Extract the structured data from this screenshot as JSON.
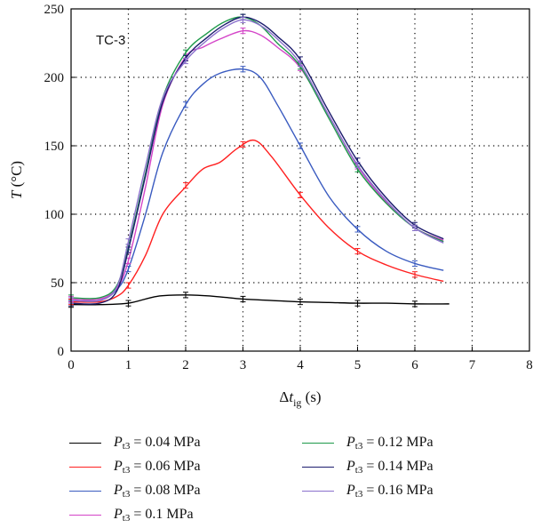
{
  "chart_data": {
    "type": "line",
    "annotation": "TC-3",
    "xlabel": {
      "delta": "Δ",
      "var": "t",
      "sub": "ig",
      "unit": " (s)"
    },
    "ylabel": {
      "var": "T",
      "unit": " (°C)"
    },
    "xlim": [
      0,
      8
    ],
    "ylim": [
      0,
      250
    ],
    "xticks": [
      "0",
      "1",
      "2",
      "3",
      "4",
      "5",
      "6",
      "7",
      "8"
    ],
    "yticks": [
      "0",
      "50",
      "100",
      "150",
      "200",
      "250"
    ],
    "grid": "dotted",
    "legend_position": "bottom",
    "series": [
      {
        "name": "0.04 MPa",
        "color": "#000000",
        "x": [
          0,
          0.5,
          1,
          1.5,
          2,
          2.5,
          3,
          3.5,
          4,
          4.5,
          5,
          5.5,
          6,
          6.6
        ],
        "y": [
          34,
          34,
          35,
          40,
          41,
          40,
          38,
          37,
          36,
          35.5,
          35,
          35,
          34.5,
          34.5
        ],
        "err_x": [
          0,
          1,
          2,
          3,
          4,
          5,
          6
        ],
        "err_y": [
          34,
          35,
          41,
          38,
          36,
          35,
          34.5
        ]
      },
      {
        "name": "0.06 MPa",
        "color": "#ff2020",
        "x": [
          0,
          0.5,
          0.8,
          1,
          1.3,
          1.6,
          2,
          2.3,
          2.6,
          2.9,
          3.2,
          3.5,
          4,
          4.5,
          5,
          5.5,
          6,
          6.5
        ],
        "y": [
          36,
          36,
          40,
          48,
          70,
          100,
          120,
          133,
          138,
          148,
          154,
          142,
          114,
          90,
          73,
          63,
          56,
          51
        ],
        "err_x": [
          0,
          1,
          2,
          3,
          4,
          5,
          6
        ],
        "err_y": [
          36,
          48,
          121,
          151,
          114,
          73,
          56
        ]
      },
      {
        "name": "0.08 MPa",
        "color": "#3a5bc0",
        "x": [
          0,
          0.5,
          0.8,
          1,
          1.3,
          1.6,
          2,
          2.3,
          2.6,
          3,
          3.3,
          3.6,
          4,
          4.5,
          5,
          5.5,
          6,
          6.5
        ],
        "y": [
          37,
          37,
          45,
          60,
          100,
          145,
          180,
          195,
          203,
          206,
          200,
          180,
          150,
          113,
          89,
          73,
          64,
          59
        ],
        "err_x": [
          0,
          1,
          2,
          3,
          4,
          5,
          6
        ],
        "err_y": [
          37,
          60,
          180,
          206,
          150,
          89,
          64
        ]
      },
      {
        "name": "0.1 MPa",
        "color": "#d444c8",
        "x": [
          0,
          0.5,
          0.8,
          1,
          1.3,
          1.6,
          2,
          2.3,
          2.6,
          3,
          3.3,
          3.6,
          4,
          4.5,
          5,
          5.5,
          6,
          6.5
        ],
        "y": [
          38,
          38,
          46,
          66,
          120,
          180,
          215,
          222,
          228,
          234,
          231,
          222,
          207,
          172,
          135,
          109,
          90,
          81
        ],
        "err_x": [
          0,
          1,
          2,
          3,
          4,
          5,
          6
        ],
        "err_y": [
          38,
          66,
          215,
          234,
          207,
          135,
          90
        ]
      },
      {
        "name": "0.12 MPa",
        "color": "#1e9a4a",
        "x": [
          0,
          0.5,
          0.8,
          1,
          1.3,
          1.6,
          2,
          2.4,
          2.7,
          3,
          3.3,
          3.6,
          4,
          4.5,
          5,
          5.5,
          6,
          6.5
        ],
        "y": [
          39,
          39,
          48,
          76,
          130,
          185,
          218,
          233,
          241,
          244,
          238,
          225,
          208,
          170,
          133,
          108,
          90,
          80
        ],
        "err_x": [
          0,
          1,
          2,
          3,
          4,
          5,
          6
        ],
        "err_y": [
          39,
          76,
          218,
          244,
          208,
          133,
          90
        ]
      },
      {
        "name": "0.14 MPa",
        "color": "#1c1c6e",
        "x": [
          0,
          0.5,
          0.8,
          1,
          1.3,
          1.6,
          2,
          2.4,
          2.7,
          3,
          3.3,
          3.6,
          4,
          4.5,
          5,
          5.5,
          6,
          6.5
        ],
        "y": [
          35,
          35,
          44,
          74,
          128,
          182,
          214,
          230,
          239,
          244,
          240,
          230,
          213,
          175,
          139,
          112,
          92,
          82
        ],
        "err_x": [
          0,
          1,
          2,
          3,
          4,
          5,
          6
        ],
        "err_y": [
          35,
          74,
          214,
          244,
          213,
          139,
          92
        ]
      },
      {
        "name": "0.16 MPa",
        "color": "#8a70cc",
        "x": [
          0,
          0.5,
          0.8,
          1,
          1.3,
          1.6,
          2,
          2.4,
          2.7,
          3,
          3.3,
          3.6,
          4,
          4.5,
          5,
          5.5,
          6,
          6.5
        ],
        "y": [
          37,
          37,
          47,
          80,
          135,
          185,
          212,
          228,
          237,
          242,
          238,
          228,
          210,
          172,
          136,
          110,
          90,
          79
        ],
        "err_x": [
          0,
          1,
          2,
          3,
          4,
          5,
          6
        ],
        "err_y": [
          37,
          80,
          212,
          242,
          210,
          136,
          90
        ]
      }
    ]
  },
  "legend": {
    "var": "P",
    "sub": "t3",
    "eq": " = "
  }
}
